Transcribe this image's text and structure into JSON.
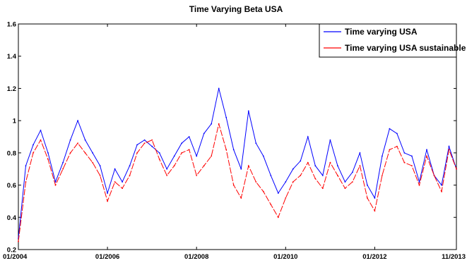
{
  "chart_data": {
    "type": "line",
    "title": "Time Varying Beta USA",
    "xlabel": "",
    "ylabel": "",
    "x_tick_labels": [
      "01/2004",
      "01/2006",
      "01/2008",
      "01/2010",
      "01/2012",
      "11/2013"
    ],
    "y_tick_labels": [
      "0.2",
      "0.4",
      "0.6",
      "0.8",
      "1",
      "1.2",
      "1.4",
      "1.6"
    ],
    "x_range": [
      "2004-01",
      "2013-11"
    ],
    "ylim": [
      0.2,
      1.6
    ],
    "grid": false,
    "legend_position": "top-right",
    "colors": {
      "series_1": "#0000ff",
      "series_2": "#ff0000"
    },
    "x": [
      "2004-01",
      "2004-03",
      "2004-05",
      "2004-07",
      "2004-09",
      "2004-11",
      "2005-01",
      "2005-03",
      "2005-05",
      "2005-07",
      "2005-09",
      "2005-11",
      "2006-01",
      "2006-03",
      "2006-05",
      "2006-07",
      "2006-09",
      "2006-11",
      "2007-01",
      "2007-03",
      "2007-05",
      "2007-07",
      "2007-09",
      "2007-11",
      "2008-01",
      "2008-03",
      "2008-05",
      "2008-07",
      "2008-09",
      "2008-11",
      "2009-01",
      "2009-03",
      "2009-05",
      "2009-07",
      "2009-09",
      "2009-11",
      "2010-01",
      "2010-03",
      "2010-05",
      "2010-07",
      "2010-09",
      "2010-11",
      "2011-01",
      "2011-03",
      "2011-05",
      "2011-07",
      "2011-09",
      "2011-11",
      "2012-01",
      "2012-03",
      "2012-05",
      "2012-07",
      "2012-09",
      "2012-11",
      "2013-01",
      "2013-03",
      "2013-05",
      "2013-07",
      "2013-09",
      "2013-11"
    ],
    "series": [
      {
        "name": "Time varying USA",
        "values": [
          0.27,
          0.72,
          0.85,
          0.94,
          0.8,
          0.62,
          0.74,
          0.88,
          1.0,
          0.88,
          0.8,
          0.72,
          0.55,
          0.7,
          0.62,
          0.72,
          0.85,
          0.88,
          0.84,
          0.8,
          0.7,
          0.78,
          0.86,
          0.9,
          0.78,
          0.92,
          0.98,
          1.2,
          1.02,
          0.82,
          0.7,
          1.06,
          0.86,
          0.78,
          0.66,
          0.55,
          0.62,
          0.7,
          0.75,
          0.9,
          0.72,
          0.66,
          0.88,
          0.72,
          0.62,
          0.68,
          0.8,
          0.6,
          0.52,
          0.78,
          0.95,
          0.92,
          0.8,
          0.78,
          0.62,
          0.82,
          0.66,
          0.6,
          0.84,
          0.7
        ]
      },
      {
        "name": "Time varying USA sustainable",
        "values": [
          0.25,
          0.62,
          0.8,
          0.88,
          0.76,
          0.6,
          0.7,
          0.8,
          0.86,
          0.8,
          0.74,
          0.66,
          0.5,
          0.62,
          0.58,
          0.66,
          0.8,
          0.86,
          0.88,
          0.76,
          0.66,
          0.72,
          0.8,
          0.82,
          0.66,
          0.72,
          0.78,
          0.98,
          0.82,
          0.6,
          0.52,
          0.72,
          0.62,
          0.56,
          0.48,
          0.4,
          0.52,
          0.62,
          0.66,
          0.74,
          0.64,
          0.58,
          0.74,
          0.66,
          0.58,
          0.62,
          0.72,
          0.52,
          0.44,
          0.66,
          0.82,
          0.84,
          0.74,
          0.72,
          0.6,
          0.78,
          0.66,
          0.56,
          0.82,
          0.7
        ]
      }
    ]
  }
}
